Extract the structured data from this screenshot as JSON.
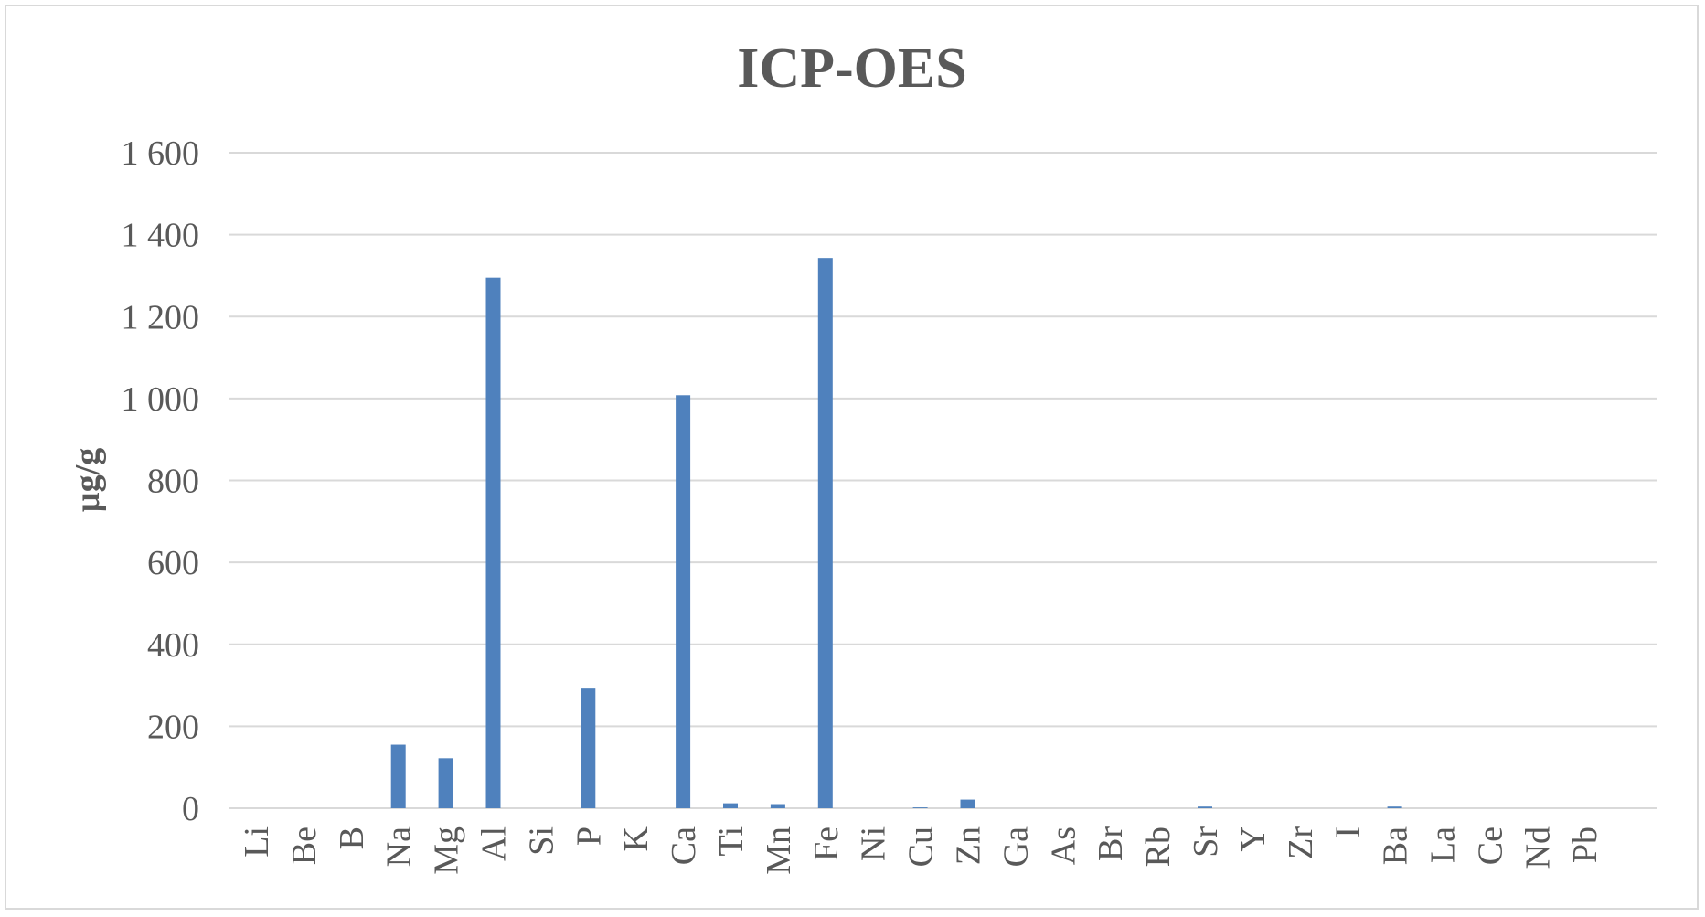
{
  "chart_data": {
    "type": "bar",
    "title": "ICP-OES",
    "xlabel": "",
    "ylabel": "µg/g",
    "ylim": [
      0,
      1600
    ],
    "yticks": [
      0,
      200,
      400,
      600,
      800,
      1000,
      1200,
      1400,
      1600
    ],
    "ytick_labels": [
      "0",
      "200",
      "400",
      "600",
      "800",
      "1 000",
      "1 200",
      "1 400",
      "1 600"
    ],
    "grid": true,
    "bar_color": "#4f81bd",
    "categories": [
      "Li",
      "Be",
      "B",
      "Na",
      "Mg",
      "Al",
      "Si",
      "P",
      "K",
      "Ca",
      "Ti",
      "Mn",
      "Fe",
      "Ni",
      "Cu",
      "Zn",
      "Ga",
      "As",
      "Br",
      "Rb",
      "Sr",
      "Y",
      "Zr",
      "I",
      "Ba",
      "La",
      "Ce",
      "Nd",
      "Pb"
    ],
    "values": [
      0,
      0,
      0,
      155,
      122,
      1295,
      0,
      292,
      0,
      1008,
      12,
      10,
      1343,
      0,
      2,
      21,
      0,
      0,
      0,
      0,
      4,
      0,
      0,
      0,
      4,
      0,
      0,
      0,
      0
    ]
  }
}
